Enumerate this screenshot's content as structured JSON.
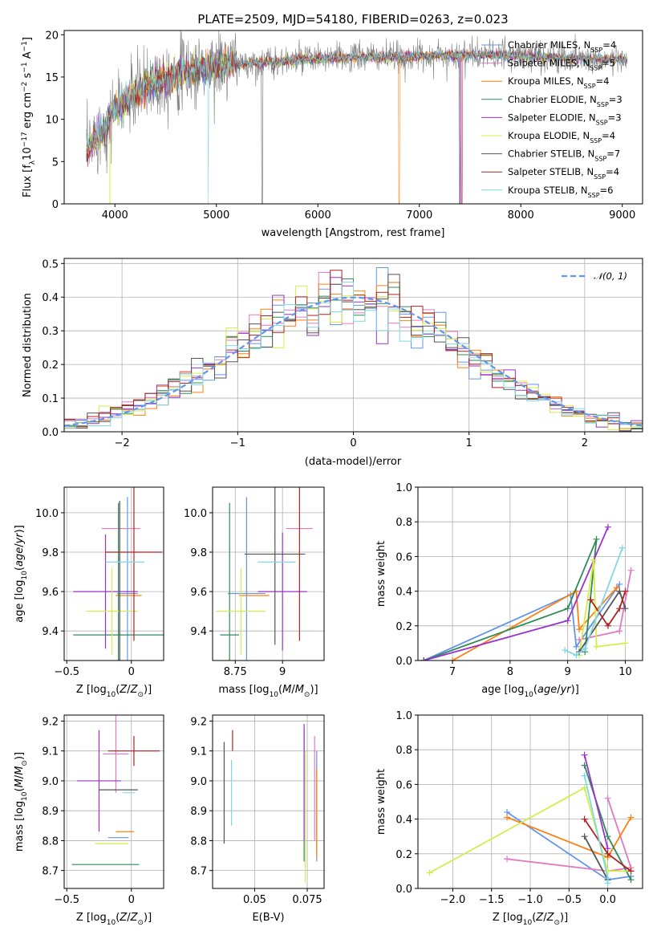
{
  "title": "PLATE=2509, MJD=54180, FIBERID=0263, z=0.023",
  "colors": [
    "#6495ed",
    "#e377c2",
    "#ff7f0e",
    "#2e8b57",
    "#9932cc",
    "#d4ed4a",
    "#555555",
    "#b22222",
    "#7fd8e6"
  ],
  "legend": [
    "Chabrier MILES, N",
    "Salpeter MILES, N",
    "Kroupa MILES, N",
    "Chabrier ELODIE, N",
    "Salpeter ELODIE, N",
    "Kroupa ELODIE, N",
    "Chabrier STELIB, N",
    "Salpeter STELIB, N",
    "Kroupa STELIB, N"
  ],
  "legend_sub": "SSP",
  "legend_n": [
    "=4",
    "=5",
    "=4",
    "=3",
    "=3",
    "=4",
    "=7",
    "=4",
    "=6"
  ],
  "chart_data": [
    {
      "type": "line",
      "id": "spectrum",
      "xlabel": "wavelength [Angstrom, rest frame]",
      "ylabel_parts": [
        "Flux [f",
        "λ",
        "10",
        "−17",
        " erg cm",
        "−2",
        " s",
        "−1",
        " A",
        "−1",
        "]"
      ],
      "xlim": [
        3500,
        9200
      ],
      "ylim": [
        0,
        20.5
      ],
      "xticks": [
        4000,
        5000,
        6000,
        7000,
        8000,
        9000
      ],
      "yticks": [
        0,
        5,
        10,
        15,
        20
      ],
      "grid": false,
      "observed_flux_profile": {
        "x": [
          3720,
          3800,
          3900,
          4000,
          4150,
          4300,
          4500,
          4700,
          5000,
          5300,
          5600,
          5900,
          6200,
          6500,
          6800,
          7100,
          7400,
          7700,
          8000,
          8300,
          8600,
          8900,
          9050
        ],
        "y": [
          6,
          8,
          9,
          11,
          12.5,
          14,
          14.8,
          15.6,
          16.3,
          16.6,
          16.8,
          17.1,
          17.2,
          17.4,
          17.3,
          17.5,
          17.6,
          17.6,
          17.5,
          17.3,
          17.2,
          17.1,
          17.1
        ]
      },
      "model_cutoffs": [
        7400,
        7400,
        6800,
        7400,
        7400,
        3950,
        5450,
        7420,
        4920
      ]
    },
    {
      "type": "histogram",
      "id": "residuals",
      "xlabel": "(data-model)/error",
      "ylabel": "Normed distribution",
      "xlim": [
        -2.5,
        2.5
      ],
      "ylim": [
        0,
        0.515
      ],
      "xticks": [
        -2,
        -1,
        0,
        1,
        2
      ],
      "yticks": [
        0.0,
        0.1,
        0.2,
        0.3,
        0.4,
        0.5
      ],
      "grid": true,
      "legend": "𝒩(0, 1)",
      "legend_position": "top-right",
      "bin_width": 0.1
    },
    {
      "type": "errorbar",
      "id": "age-vs-Z",
      "xlabel": "Z [log10(Z/Z⊙)]",
      "ylabel": "age [log10(age/yr)]",
      "xlim": [
        -0.52,
        0.25
      ],
      "ylim": [
        9.25,
        10.13
      ],
      "xticks": [
        -0.5,
        0.0
      ],
      "yticks": [
        9.4,
        9.6,
        9.8,
        10.0
      ],
      "grid": true,
      "points": [
        {
          "x": -0.03,
          "y": 9.59,
          "xerr": 0.08,
          "yerr": 0.49
        },
        {
          "x": -0.08,
          "y": 9.92,
          "xerr": 0.15,
          "yerr": 0.0
        },
        {
          "x": -0.02,
          "y": 9.58,
          "xerr": 0.1,
          "yerr": 0.0
        },
        {
          "x": -0.1,
          "y": 9.38,
          "xerr": 0.35,
          "yerr": 0.67
        },
        {
          "x": -0.2,
          "y": 9.6,
          "xerr": 0.25,
          "yerr": 0.29
        },
        {
          "x": -0.15,
          "y": 9.5,
          "xerr": 0.2,
          "yerr": 0.22
        },
        {
          "x": -0.09,
          "y": 9.6,
          "xerr": 0.0,
          "yerr": 0.46
        },
        {
          "x": 0.02,
          "y": 9.8,
          "xerr": 0.22,
          "yerr": 0.45
        },
        {
          "x": -0.05,
          "y": 9.75,
          "xerr": 0.15,
          "yerr": 0.0
        }
      ]
    },
    {
      "type": "errorbar",
      "id": "age-vs-mass",
      "xlabel": "mass [log10(M/M⊙)]",
      "ylabel": "",
      "xlim": [
        8.63,
        9.22
      ],
      "ylim": [
        9.25,
        10.13
      ],
      "xticks": [
        8.75,
        9.0
      ],
      "yticks": [
        9.4,
        9.6,
        9.8,
        10.0
      ],
      "grid": true,
      "points": [
        {
          "x": 8.81,
          "y": 9.59,
          "xerr": 0.1,
          "yerr": 0.49
        },
        {
          "x": 9.09,
          "y": 9.92,
          "xerr": 0.07,
          "yerr": 0.0
        },
        {
          "x": 8.85,
          "y": 9.58,
          "xerr": 0.08,
          "yerr": 0.0
        },
        {
          "x": 8.72,
          "y": 9.38,
          "xerr": 0.05,
          "yerr": 0.67
        },
        {
          "x": 9.0,
          "y": 9.6,
          "xerr": 0.13,
          "yerr": 0.3
        },
        {
          "x": 8.78,
          "y": 9.5,
          "xerr": 0.13,
          "yerr": 0.22
        },
        {
          "x": 8.96,
          "y": 9.79,
          "xerr": 0.16,
          "yerr": 0.46
        },
        {
          "x": 9.09,
          "y": 9.8,
          "xerr": 0.0,
          "yerr": 0.45
        },
        {
          "x": 8.97,
          "y": 9.75,
          "xerr": 0.1,
          "yerr": 0.0
        }
      ]
    },
    {
      "type": "line",
      "id": "massweight-vs-age",
      "xlabel": "age  [log10(age/yr)]",
      "ylabel": "mass weight",
      "xlim": [
        6.4,
        10.3
      ],
      "ylim": [
        0,
        1.0
      ],
      "xticks": [
        7,
        8,
        9,
        10
      ],
      "yticks": [
        0.0,
        0.2,
        0.4,
        0.6,
        0.8,
        1.0
      ],
      "grid": true,
      "series": [
        {
          "x": [
            6.5,
            9.05,
            9.15,
            9.9
          ],
          "y": [
            0.0,
            0.38,
            0.08,
            0.44
          ]
        },
        {
          "x": [
            9.2,
            9.9,
            10.1
          ],
          "y": [
            0.12,
            0.17,
            0.52
          ]
        },
        {
          "x": [
            7.0,
            9.15,
            9.2,
            9.85
          ],
          "y": [
            0.0,
            0.4,
            0.18,
            0.42
          ]
        },
        {
          "x": [
            6.5,
            9.0,
            9.5,
            9.3
          ],
          "y": [
            0.0,
            0.3,
            0.7,
            0.05
          ]
        },
        {
          "x": [
            6.5,
            9.0,
            9.7
          ],
          "y": [
            0.0,
            0.23,
            0.77
          ]
        },
        {
          "x": [
            9.2,
            9.45,
            9.5,
            10.0
          ],
          "y": [
            0.03,
            0.58,
            0.08,
            0.1
          ]
        },
        {
          "x": [
            9.2,
            9.9,
            10.0
          ],
          "y": [
            0.05,
            0.4,
            0.3
          ]
        },
        {
          "x": [
            9.4,
            9.7,
            9.9,
            10.0
          ],
          "y": [
            0.35,
            0.2,
            0.3,
            0.4
          ]
        },
        {
          "x": [
            8.95,
            9.15,
            9.3,
            9.95
          ],
          "y": [
            0.06,
            0.03,
            0.07,
            0.65
          ]
        }
      ]
    },
    {
      "type": "errorbar",
      "id": "mass-vs-Z",
      "xlabel": "Z [log10(Z/Z⊙)]",
      "ylabel": "mass [log10(M/M⊙)]",
      "xlim": [
        -0.52,
        0.25
      ],
      "ylim": [
        8.64,
        9.22
      ],
      "xticks": [
        -0.5,
        0.0
      ],
      "yticks": [
        8.7,
        8.8,
        8.9,
        9.0,
        9.1,
        9.2
      ],
      "grid": true,
      "points": [
        {
          "x": -0.1,
          "y": 8.81,
          "xerr": 0.08,
          "yerr": 0.0
        },
        {
          "x": -0.12,
          "y": 9.09,
          "xerr": 0.1,
          "yerr": 0.13
        },
        {
          "x": -0.05,
          "y": 8.83,
          "xerr": 0.07,
          "yerr": 0.0
        },
        {
          "x": -0.2,
          "y": 8.72,
          "xerr": 0.26,
          "yerr": 0.0
        },
        {
          "x": -0.25,
          "y": 9.0,
          "xerr": 0.17,
          "yerr": 0.17
        },
        {
          "x": -0.15,
          "y": 8.79,
          "xerr": 0.13,
          "yerr": 0.0
        },
        {
          "x": -0.1,
          "y": 8.97,
          "xerr": 0.15,
          "yerr": 0.0
        },
        {
          "x": 0.02,
          "y": 9.1,
          "xerr": 0.2,
          "yerr": 0.05
        },
        {
          "x": -0.02,
          "y": 8.96,
          "xerr": 0.05,
          "yerr": 0.0
        }
      ]
    },
    {
      "type": "errorbar",
      "id": "mass-vs-EBV",
      "xlabel": "E(B-V)",
      "ylabel": "",
      "xlim": [
        0.03,
        0.083
      ],
      "ylim": [
        8.64,
        9.22
      ],
      "xticks": [
        0.05,
        0.075
      ],
      "yticks": [
        8.7,
        8.8,
        8.9,
        9.0,
        9.1,
        9.2
      ],
      "grid": true,
      "vbars": [
        {
          "x": 0.0795,
          "ymin": 8.73,
          "ymax": 9.1
        },
        {
          "x": 0.0785,
          "ymin": 8.8,
          "ymax": 9.15
        },
        {
          "x": 0.0795,
          "ymin": 8.74,
          "ymax": 9.04
        },
        {
          "x": 0.0735,
          "ymin": 8.73,
          "ymax": 9.17
        },
        {
          "x": 0.0735,
          "ymin": 8.8,
          "ymax": 9.19
        },
        {
          "x": 0.074,
          "ymin": 8.66,
          "ymax": 9.1
        },
        {
          "x": 0.0355,
          "ymin": 8.79,
          "ymax": 9.13
        },
        {
          "x": 0.0395,
          "ymin": 9.1,
          "ymax": 9.17
        },
        {
          "x": 0.039,
          "ymin": 8.85,
          "ymax": 9.07
        }
      ]
    },
    {
      "type": "line",
      "id": "massweight-vs-Z",
      "xlabel": "Z [log10(Z/Z⊙)]",
      "ylabel": "mass weight",
      "xlim": [
        -2.45,
        0.45
      ],
      "ylim": [
        0,
        1.0
      ],
      "xticks": [
        -2.0,
        -1.5,
        -1.0,
        -0.5,
        0.0
      ],
      "yticks": [
        0.0,
        0.2,
        0.4,
        0.6,
        0.8,
        1.0
      ],
      "grid": true,
      "series": [
        {
          "x": [
            -1.3,
            0.0,
            0.3
          ],
          "y": [
            0.44,
            0.05,
            0.07
          ]
        },
        {
          "x": [
            -1.3,
            0.0,
            0.3,
            0.0
          ],
          "y": [
            0.17,
            0.1,
            0.12,
            0.52
          ]
        },
        {
          "x": [
            -1.3,
            0.0,
            0.3
          ],
          "y": [
            0.41,
            0.18,
            0.41
          ]
        },
        {
          "x": [
            -0.3,
            0.0,
            0.3
          ],
          "y": [
            0.71,
            0.3,
            0.05
          ]
        },
        {
          "x": [
            -0.3,
            0.0
          ],
          "y": [
            0.77,
            0.23
          ]
        },
        {
          "x": [
            -2.3,
            -0.3,
            0.0,
            0.3
          ],
          "y": [
            0.09,
            0.58,
            0.1,
            0.1
          ]
        },
        {
          "x": [
            -0.3,
            0.0
          ],
          "y": [
            0.3,
            0.05
          ]
        },
        {
          "x": [
            -0.3,
            0.0,
            0.3
          ],
          "y": [
            0.4,
            0.2,
            0.1
          ]
        },
        {
          "x": [
            -0.3,
            0.0,
            0.0
          ],
          "y": [
            0.65,
            0.06,
            0.03
          ]
        }
      ]
    }
  ]
}
